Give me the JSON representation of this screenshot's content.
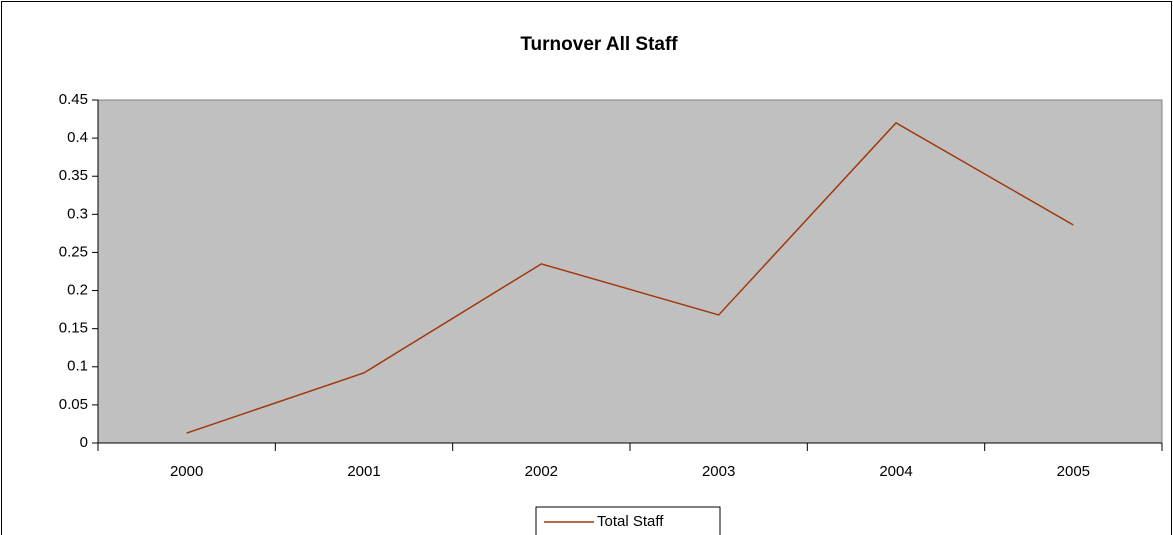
{
  "chart_data": {
    "type": "line",
    "title": "Turnover All Staff",
    "categories": [
      "2000",
      "2001",
      "2002",
      "2003",
      "2004",
      "2005"
    ],
    "series": [
      {
        "name": "Total Staff",
        "color": "#a0380c",
        "values": [
          0.013,
          0.092,
          0.235,
          0.168,
          0.42,
          0.286
        ]
      }
    ],
    "ylim": [
      0,
      0.45
    ],
    "yticks": [
      0,
      0.05,
      0.1,
      0.15,
      0.2,
      0.25,
      0.3,
      0.35,
      0.4,
      0.45
    ],
    "legend": "bottom"
  }
}
